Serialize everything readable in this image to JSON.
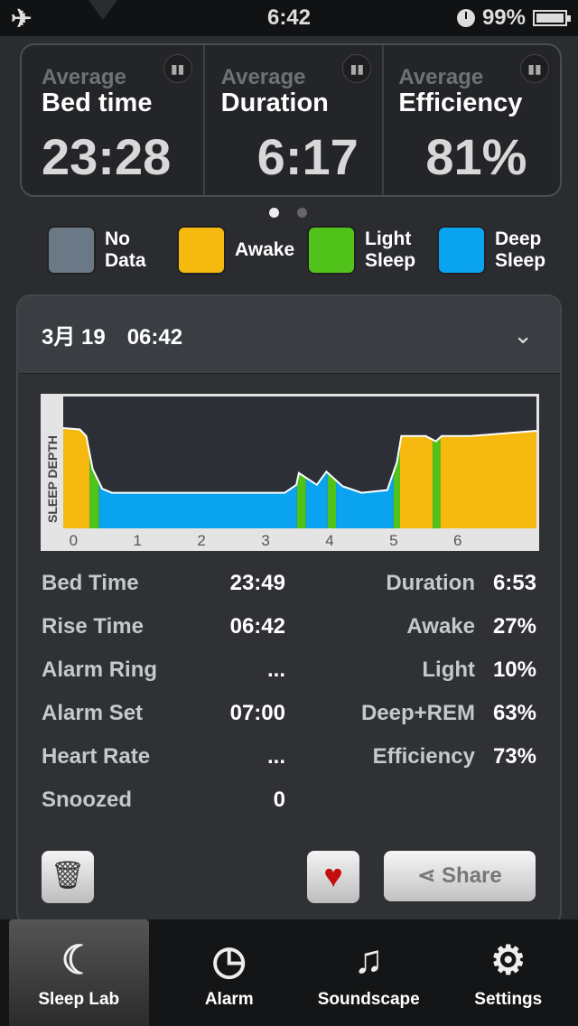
{
  "status": {
    "time": "6:42",
    "battery": "99%",
    "battery_level": 0.99
  },
  "stats": [
    {
      "avg": "Average",
      "label": "Bed time",
      "value": "23:28"
    },
    {
      "avg": "Average",
      "label": "Duration",
      "value": "6:17"
    },
    {
      "avg": "Average",
      "label": "Efficiency",
      "value": "81%"
    }
  ],
  "pager": {
    "pages": 2,
    "current": 1
  },
  "legend": [
    {
      "label": "No Data",
      "color": "#6b7885"
    },
    {
      "label": "Awake",
      "color": "#f5b90f"
    },
    {
      "label": "Light Sleep",
      "color": "#50c21a"
    },
    {
      "label": "Deep Sleep",
      "color": "#0aa3f0"
    }
  ],
  "record": {
    "date": "3月 19　06:42"
  },
  "chart_data": {
    "type": "area",
    "ylabel": "SLEEP DEPTH",
    "x_ticks": [
      "0",
      "1",
      "2",
      "3",
      "4",
      "5",
      "6"
    ],
    "xlim": [
      -0.16,
      7.23
    ],
    "stages": [
      {
        "stage": "Awake",
        "from": -0.16,
        "to": 0.25
      },
      {
        "stage": "Light Sleep",
        "from": 0.25,
        "to": 0.4
      },
      {
        "stage": "Deep Sleep",
        "from": 0.4,
        "to": 3.49
      },
      {
        "stage": "Light Sleep",
        "from": 3.49,
        "to": 3.63
      },
      {
        "stage": "Deep Sleep",
        "from": 3.63,
        "to": 3.97
      },
      {
        "stage": "Light Sleep",
        "from": 3.97,
        "to": 4.1
      },
      {
        "stage": "Deep Sleep",
        "from": 4.1,
        "to": 5.0
      },
      {
        "stage": "Light Sleep",
        "from": 5.0,
        "to": 5.1
      },
      {
        "stage": "Awake",
        "from": 5.1,
        "to": 5.61
      },
      {
        "stage": "Light Sleep",
        "from": 5.61,
        "to": 5.73
      },
      {
        "stage": "Awake",
        "from": 5.73,
        "to": 7.23
      }
    ],
    "curve": [
      [
        -0.16,
        0.76
      ],
      [
        0.1,
        0.75
      ],
      [
        0.2,
        0.7
      ],
      [
        0.3,
        0.45
      ],
      [
        0.45,
        0.3
      ],
      [
        0.6,
        0.27
      ],
      [
        3.3,
        0.27
      ],
      [
        3.48,
        0.33
      ],
      [
        3.52,
        0.42
      ],
      [
        3.8,
        0.33
      ],
      [
        3.95,
        0.43
      ],
      [
        4.2,
        0.32
      ],
      [
        4.5,
        0.27
      ],
      [
        4.9,
        0.29
      ],
      [
        5.05,
        0.5
      ],
      [
        5.12,
        0.7
      ],
      [
        5.5,
        0.7
      ],
      [
        5.66,
        0.66
      ],
      [
        5.75,
        0.7
      ],
      [
        6.2,
        0.7
      ],
      [
        7.23,
        0.74
      ]
    ]
  },
  "details": [
    {
      "k1": "Bed Time",
      "v1": "23:49",
      "k2": "Duration",
      "v2": "6:53"
    },
    {
      "k1": "Rise Time",
      "v1": "06:42",
      "k2": "Awake",
      "v2": "27%"
    },
    {
      "k1": "Alarm Ring",
      "v1": "...",
      "k2": "Light",
      "v2": "10%"
    },
    {
      "k1": "Alarm Set",
      "v1": "07:00",
      "k2": "Deep+REM",
      "v2": "63%"
    },
    {
      "k1": "Heart Rate",
      "v1": "...",
      "k2": "Efficiency",
      "v2": "73%"
    },
    {
      "k1": "Snoozed",
      "v1": "0",
      "k2": "",
      "v2": ""
    }
  ],
  "actions": {
    "share": "Share"
  },
  "tabs": [
    {
      "label": "Sleep Lab",
      "icon": "moon-icon",
      "glyph": "☾"
    },
    {
      "label": "Alarm",
      "icon": "clock-icon",
      "glyph": "◷"
    },
    {
      "label": "Soundscape",
      "icon": "music-note-icon",
      "glyph": "♫"
    },
    {
      "label": "Settings",
      "icon": "gear-icon",
      "glyph": "⚙"
    }
  ]
}
